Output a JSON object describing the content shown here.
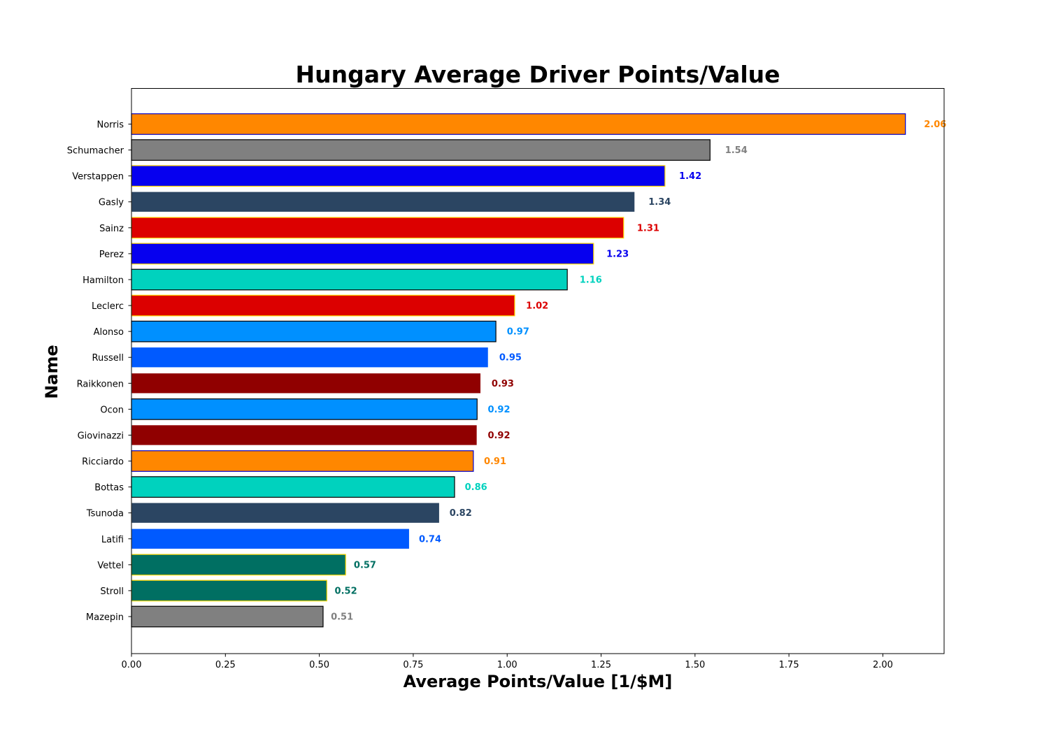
{
  "chart_data": {
    "type": "bar",
    "orientation": "horizontal",
    "title": "Hungary Average Driver Points/Value",
    "xlabel": "Average Points/Value [1/$M]",
    "ylabel": "Name",
    "xlim": [
      0,
      2.163
    ],
    "xticks": [
      "0.00",
      "0.25",
      "0.50",
      "0.75",
      "1.00",
      "1.25",
      "1.50",
      "1.75",
      "2.00"
    ],
    "grid": false,
    "legend": "none",
    "bars": [
      {
        "name": "Norris",
        "value": 2.06,
        "label": "2.06",
        "color": "#ff8700",
        "edge": "#0000cd"
      },
      {
        "name": "Schumacher",
        "value": 1.54,
        "label": "1.54",
        "color": "#808080",
        "edge": "#000000"
      },
      {
        "name": "Verstappen",
        "value": 1.42,
        "label": "1.42",
        "color": "#0600ef",
        "edge": "#ffd700"
      },
      {
        "name": "Gasly",
        "value": 1.34,
        "label": "1.34",
        "color": "#2b4562",
        "edge": "#ffffff"
      },
      {
        "name": "Sainz",
        "value": 1.31,
        "label": "1.31",
        "color": "#dc0000",
        "edge": "#ffd700"
      },
      {
        "name": "Perez",
        "value": 1.23,
        "label": "1.23",
        "color": "#0600ef",
        "edge": "#ffd700"
      },
      {
        "name": "Hamilton",
        "value": 1.16,
        "label": "1.16",
        "color": "#00d2be",
        "edge": "#000000"
      },
      {
        "name": "Leclerc",
        "value": 1.02,
        "label": "1.02",
        "color": "#dc0000",
        "edge": "#ffd700"
      },
      {
        "name": "Alonso",
        "value": 0.97,
        "label": "0.97",
        "color": "#0090ff",
        "edge": "#000000"
      },
      {
        "name": "Russell",
        "value": 0.95,
        "label": "0.95",
        "color": "#005aff",
        "edge": "#ffffff"
      },
      {
        "name": "Raikkonen",
        "value": 0.93,
        "label": "0.93",
        "color": "#900000",
        "edge": "#ffffff"
      },
      {
        "name": "Ocon",
        "value": 0.92,
        "label": "0.92",
        "color": "#0090ff",
        "edge": "#000000"
      },
      {
        "name": "Giovinazzi",
        "value": 0.92,
        "label": "0.92",
        "color": "#900000",
        "edge": "#ffffff"
      },
      {
        "name": "Ricciardo",
        "value": 0.91,
        "label": "0.91",
        "color": "#ff8700",
        "edge": "#0000cd"
      },
      {
        "name": "Bottas",
        "value": 0.86,
        "label": "0.86",
        "color": "#00d2be",
        "edge": "#000000"
      },
      {
        "name": "Tsunoda",
        "value": 0.82,
        "label": "0.82",
        "color": "#2b4562",
        "edge": "#ffffff"
      },
      {
        "name": "Latifi",
        "value": 0.74,
        "label": "0.74",
        "color": "#005aff",
        "edge": "#ffffff"
      },
      {
        "name": "Vettel",
        "value": 0.57,
        "label": "0.57",
        "color": "#006f62",
        "edge": "#ffd700"
      },
      {
        "name": "Stroll",
        "value": 0.52,
        "label": "0.52",
        "color": "#006f62",
        "edge": "#ffd700"
      },
      {
        "name": "Mazepin",
        "value": 0.51,
        "label": "0.51",
        "color": "#808080",
        "edge": "#000000"
      }
    ]
  }
}
